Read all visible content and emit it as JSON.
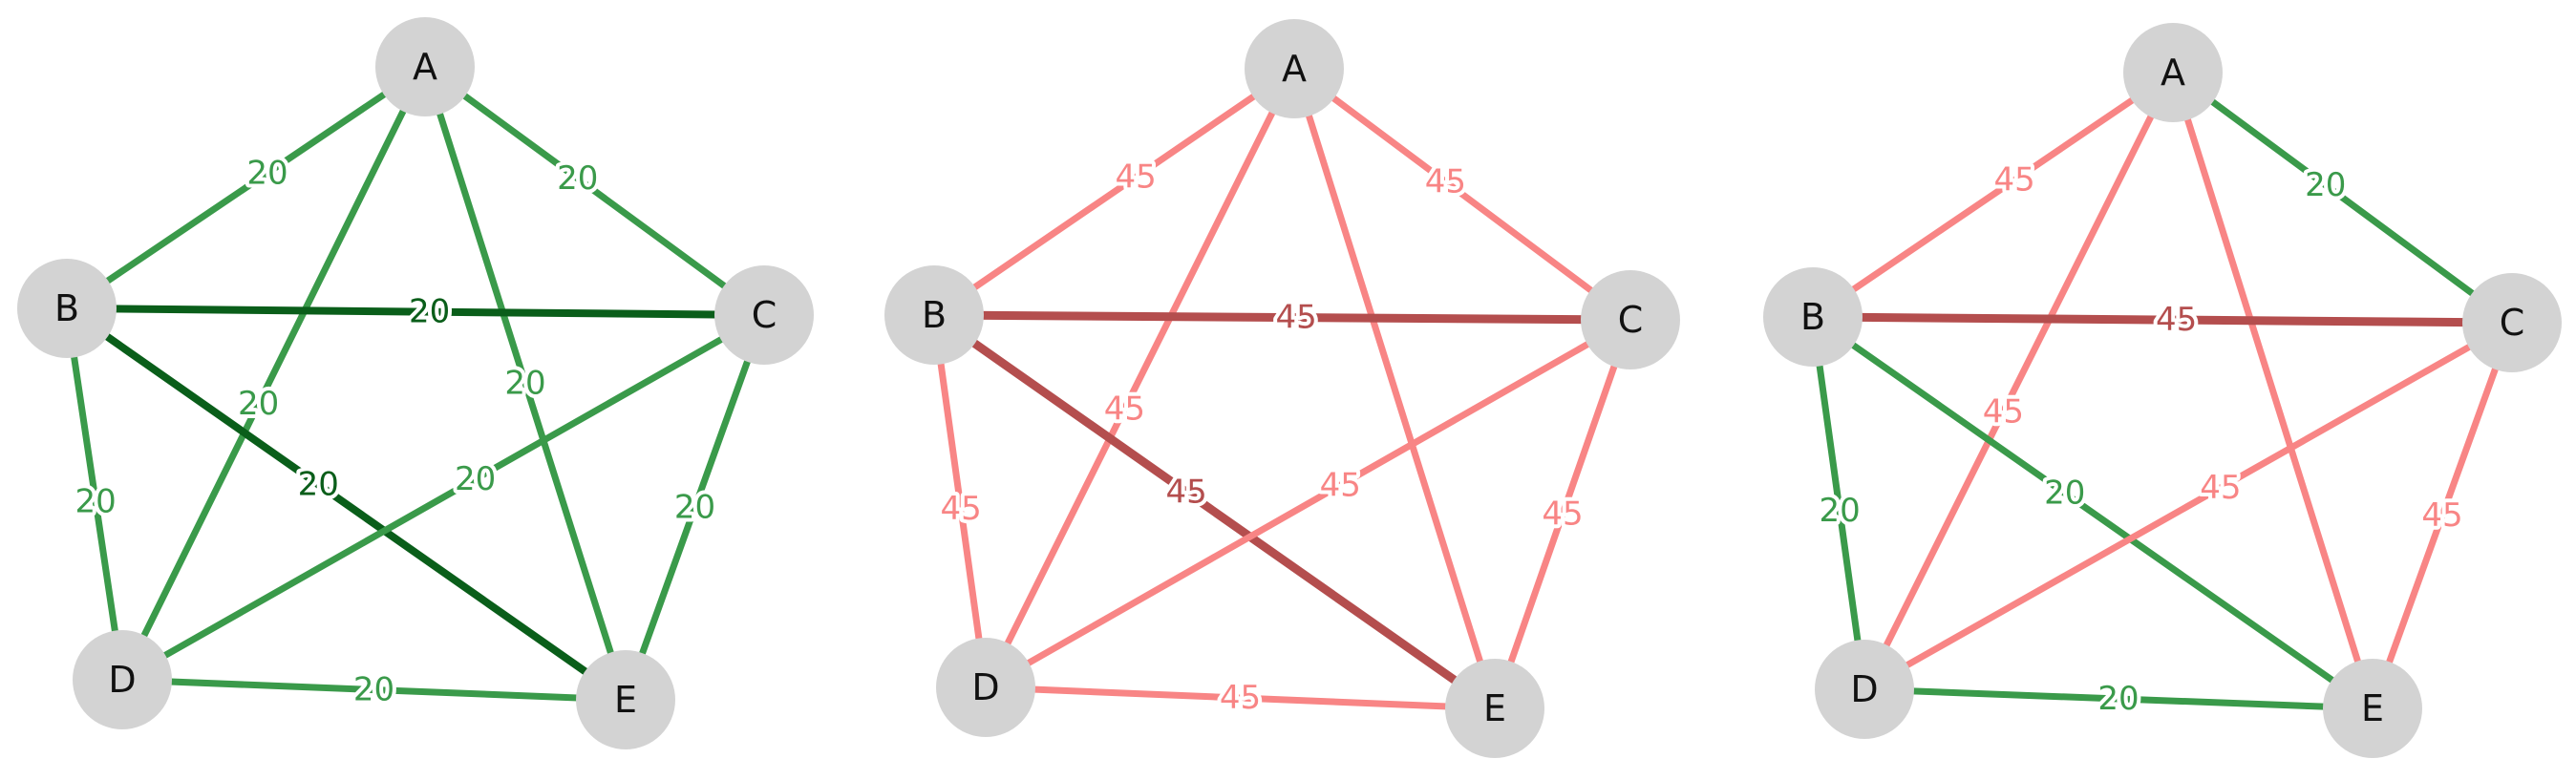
{
  "graphs": [
    {
      "name": "left",
      "nodes": [
        {
          "id": "A",
          "label": "A"
        },
        {
          "id": "B",
          "label": "B"
        },
        {
          "id": "C",
          "label": "C"
        },
        {
          "id": "D",
          "label": "D"
        },
        {
          "id": "E",
          "label": "E"
        }
      ],
      "edges": [
        {
          "from": "A",
          "to": "B",
          "label": "20",
          "color": "#3a9a4a"
        },
        {
          "from": "A",
          "to": "C",
          "label": "20",
          "color": "#3a9a4a"
        },
        {
          "from": "A",
          "to": "D",
          "label": "20",
          "color": "#3a9a4a"
        },
        {
          "from": "A",
          "to": "E",
          "label": "20",
          "color": "#3a9a4a"
        },
        {
          "from": "B",
          "to": "C",
          "label": "20",
          "color": "#0a5e1a"
        },
        {
          "from": "B",
          "to": "D",
          "label": "20",
          "color": "#3a9a4a"
        },
        {
          "from": "B",
          "to": "E",
          "label": "20",
          "color": "#0a5e1a"
        },
        {
          "from": "C",
          "to": "D",
          "label": "20",
          "color": "#3a9a4a"
        },
        {
          "from": "C",
          "to": "E",
          "label": "20",
          "color": "#3a9a4a"
        },
        {
          "from": "D",
          "to": "E",
          "label": "20",
          "color": "#3a9a4a"
        }
      ]
    },
    {
      "name": "middle",
      "nodes": [
        {
          "id": "A",
          "label": "A"
        },
        {
          "id": "B",
          "label": "B"
        },
        {
          "id": "C",
          "label": "C"
        },
        {
          "id": "D",
          "label": "D"
        },
        {
          "id": "E",
          "label": "E"
        }
      ],
      "edges": [
        {
          "from": "A",
          "to": "B",
          "label": "45",
          "color": "#f88585"
        },
        {
          "from": "A",
          "to": "C",
          "label": "45",
          "color": "#f88585"
        },
        {
          "from": "A",
          "to": "D",
          "label": "45",
          "color": "#f88585"
        },
        {
          "from": "A",
          "to": "E",
          "label": "",
          "color": "#f88585"
        },
        {
          "from": "B",
          "to": "C",
          "label": "45",
          "color": "#b44e4e"
        },
        {
          "from": "B",
          "to": "D",
          "label": "45",
          "color": "#f88585"
        },
        {
          "from": "B",
          "to": "E",
          "label": "45",
          "color": "#b44e4e"
        },
        {
          "from": "C",
          "to": "D",
          "label": "45",
          "color": "#f88585"
        },
        {
          "from": "C",
          "to": "E",
          "label": "45",
          "color": "#f88585"
        },
        {
          "from": "D",
          "to": "E",
          "label": "45",
          "color": "#f88585"
        }
      ]
    },
    {
      "name": "right",
      "nodes": [
        {
          "id": "A",
          "label": "A"
        },
        {
          "id": "B",
          "label": "B"
        },
        {
          "id": "C",
          "label": "C"
        },
        {
          "id": "D",
          "label": "D"
        },
        {
          "id": "E",
          "label": "E"
        }
      ],
      "edges": [
        {
          "from": "A",
          "to": "B",
          "label": "45",
          "color": "#f88585"
        },
        {
          "from": "A",
          "to": "C",
          "label": "20",
          "color": "#3a9a4a"
        },
        {
          "from": "A",
          "to": "D",
          "label": "45",
          "color": "#f88585"
        },
        {
          "from": "A",
          "to": "E",
          "label": "",
          "color": "#f88585"
        },
        {
          "from": "B",
          "to": "C",
          "label": "45",
          "color": "#b44e4e"
        },
        {
          "from": "B",
          "to": "D",
          "label": "20",
          "color": "#3a9a4a"
        },
        {
          "from": "B",
          "to": "E",
          "label": "20",
          "color": "#3a9a4a"
        },
        {
          "from": "C",
          "to": "D",
          "label": "45",
          "color": "#f88585"
        },
        {
          "from": "C",
          "to": "E",
          "label": "45",
          "color": "#f88585"
        },
        {
          "from": "D",
          "to": "E",
          "label": "20",
          "color": "#3a9a4a"
        }
      ]
    }
  ]
}
